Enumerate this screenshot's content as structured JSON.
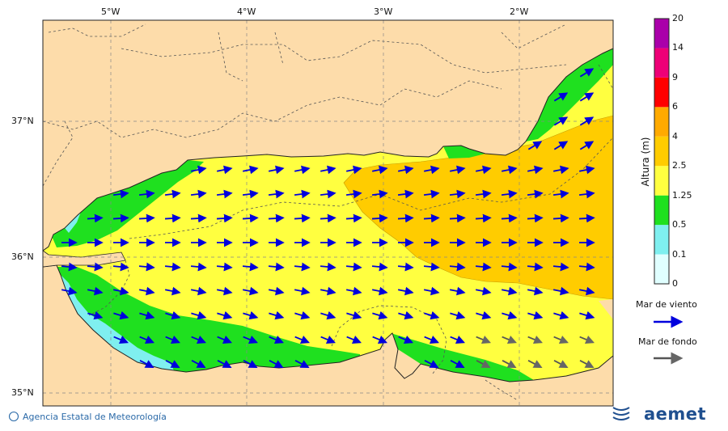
{
  "map": {
    "lon_labels": [
      "5°W",
      "4°W",
      "3°W",
      "2°W"
    ],
    "lat_labels": [
      "37°N",
      "36°N",
      "35°N"
    ],
    "extent": {
      "lon": [
        -5.5,
        -1.0
      ],
      "lat": [
        34.9,
        37.75
      ]
    }
  },
  "colorbar": {
    "title": "Altura (m)",
    "levels": [
      "0",
      "0.1",
      "0.5",
      "1.25",
      "2.5",
      "4",
      "6",
      "9",
      "14",
      "20"
    ],
    "colors": [
      "#e0ffff",
      "#7fefef",
      "#1fe01f",
      "#ffff40",
      "#ffcc00",
      "#ffaa00",
      "#ff0000",
      "#ee0077",
      "#aa00aa"
    ]
  },
  "legend": {
    "wind_sea": "Mar de viento",
    "swell": "Mar de fondo",
    "wind_sea_color": "#0000dd",
    "swell_color": "#555555"
  },
  "footer": {
    "credit": "Agencia Estatal de Meteorología",
    "brand": "aemet"
  },
  "colors": {
    "land": "#fddcaa",
    "coast": "#222222"
  }
}
